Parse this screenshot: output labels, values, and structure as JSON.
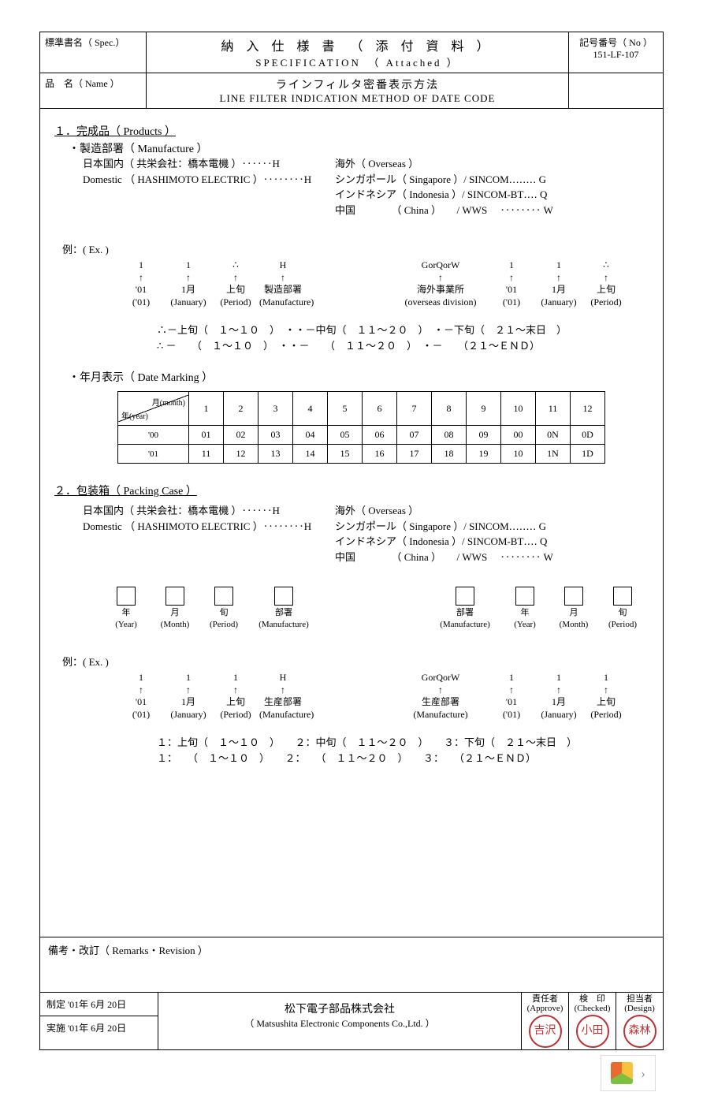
{
  "header": {
    "spec_label_jp": "標準書名（ Spec.）",
    "name_label_jp": "品　名（ Name ）",
    "title_jp": "納 入 仕 様 書　（ 添 付 資 料 ）",
    "title_en": "SPECIFICATION　（ Attached ）",
    "name_jp": "ラインフィルタ密番表示方法",
    "name_en": "LINE FILTER INDICATION METHOD OF DATE CODE",
    "docno_label": "記号番号（ No ）",
    "docno": "151-LF-107"
  },
  "s1": {
    "heading": "１．完成品（ Products ）",
    "manufacture": "・製造部署（ Manufacture ）",
    "dom1": "日本国内（ 共栄会社：橋本電機 ）‥‥‥H",
    "dom2": "Domestic （ HASHIMOTO ELECTRIC ）‥‥‥‥H",
    "ov0": "海外（ Overseas ）",
    "ov1": "シンガポール（ Singapore ）/ SINCOM‥‥‥‥ G",
    "ov2": "インドネシア（ Indonesia ）/ SINCOM-BT‥‥ Q",
    "ov3": "中国　　　　（  China  ）　　/ WWS 　‥‥‥‥ W"
  },
  "ex_label": "例：( Ex. )",
  "ex1": {
    "left": [
      {
        "v": "1",
        "a": "↑",
        "j": "'01",
        "e": "('01)"
      },
      {
        "v": "1",
        "a": "↑",
        "j": "1月",
        "e": "(January)"
      },
      {
        "v": "∴",
        "a": "↑",
        "j": "上旬",
        "e": "(Period)"
      },
      {
        "v": "H",
        "a": "↑",
        "j": "製造部署",
        "e": "(Manufacture)"
      }
    ],
    "right": [
      {
        "v": "GorQorW",
        "a": "↑",
        "j": "海外事業所",
        "e": "(overseas division)"
      },
      {
        "v": "1",
        "a": "↑",
        "j": "'01",
        "e": "('01)"
      },
      {
        "v": "1",
        "a": "↑",
        "j": "1月",
        "e": "(January)"
      },
      {
        "v": "∴",
        "a": "↑",
        "j": "上旬",
        "e": "(Period)"
      }
    ]
  },
  "period_def": {
    "l1": "∴－上旬（　１～１０　）　・・－中旬（　１１～２０　）　・－下旬（　２１～末日　）",
    "l2": "∴ －　　（　１～１０　）　・・－　　（　１１～２０　）　・－　　（２１～ＥＮＤ）"
  },
  "date_marking_label": "・年月表示（ Date Marking ）",
  "dm": {
    "month_label": "月(month)",
    "year_label": "年(year)",
    "months": [
      "1",
      "2",
      "3",
      "4",
      "5",
      "6",
      "7",
      "8",
      "9",
      "10",
      "11",
      "12"
    ],
    "rows": [
      {
        "y": "'00",
        "c": [
          "01",
          "02",
          "03",
          "04",
          "05",
          "06",
          "07",
          "08",
          "09",
          "00",
          "0N",
          "0D"
        ]
      },
      {
        "y": "'01",
        "c": [
          "11",
          "12",
          "13",
          "14",
          "15",
          "16",
          "17",
          "18",
          "19",
          "10",
          "1N",
          "1D"
        ]
      }
    ]
  },
  "s2": {
    "heading": "２．包装箱（ Packing Case ）",
    "dom1": "日本国内（ 共栄会社：橋本電機 ）‥‥‥H",
    "dom2": "Domestic （ HASHIMOTO ELECTRIC ）‥‥‥‥H",
    "ov0": "海外（ Overseas ）",
    "ov1": "シンガポール（ Singapore ）/ SINCOM‥‥‥‥ G",
    "ov2": "インドネシア（ Indonesia ）/ SINCOM-BT‥‥ Q",
    "ov3": "中国　　　　（  China  ）　　/ WWS 　‥‥‥‥ W"
  },
  "boxes": {
    "left": [
      {
        "j": "年",
        "e": "(Year)"
      },
      {
        "j": "月",
        "e": "(Month)"
      },
      {
        "j": "旬",
        "e": "(Period)"
      },
      {
        "j": "部署",
        "e": "(Manufacture)"
      }
    ],
    "right": [
      {
        "j": "部署",
        "e": "(Manufacture)"
      },
      {
        "j": "年",
        "e": "(Year)"
      },
      {
        "j": "月",
        "e": "(Month)"
      },
      {
        "j": "旬",
        "e": "(Period)"
      }
    ]
  },
  "ex2": {
    "left": [
      {
        "v": "1",
        "a": "↑",
        "j": "'01",
        "e": "('01)"
      },
      {
        "v": "1",
        "a": "↑",
        "j": "1月",
        "e": "(January)"
      },
      {
        "v": "1",
        "a": "↑",
        "j": "上旬",
        "e": "(Period)"
      },
      {
        "v": "H",
        "a": "↑",
        "j": "生産部署",
        "e": "(Manufacture)"
      }
    ],
    "right": [
      {
        "v": "GorQorW",
        "a": "↑",
        "j": "生産部署",
        "e": "(Manufacture)"
      },
      {
        "v": "1",
        "a": "↑",
        "j": "'01",
        "e": "('01)"
      },
      {
        "v": "1",
        "a": "↑",
        "j": "1月",
        "e": "(January)"
      },
      {
        "v": "1",
        "a": "↑",
        "j": "上旬",
        "e": "(Period)"
      }
    ]
  },
  "period_def2": {
    "l1": "１：上旬（　１～１０　）　　２：中旬（　１１～２０　）　　３：下旬（　２１～末日　）",
    "l2": "１：　　（　１～１０　）　　２：　　（　１１～２０　）　　３：　　（２１～ＥＮＤ）"
  },
  "remarks_label": "備考・改訂（ Remarks・Revision ）",
  "footer": {
    "est": "制定 '01年 6月 20日",
    "eff": "実施 '01年 6月 20日",
    "company_jp": "松下電子部品株式会社",
    "company_en": "（ Matsushita Electronic Components Co.,Ltd. ）",
    "sig": [
      {
        "j": "責任者",
        "e": "(Approve)",
        "s": "吉沢"
      },
      {
        "j": "検　印",
        "e": "(Checked)",
        "s": "小田"
      },
      {
        "j": "担当者",
        "e": "(Design)",
        "s": "森林"
      }
    ]
  },
  "colors": {
    "text": "#000000",
    "bg": "#ffffff",
    "stamp": "#b33333",
    "border": "#000000"
  }
}
